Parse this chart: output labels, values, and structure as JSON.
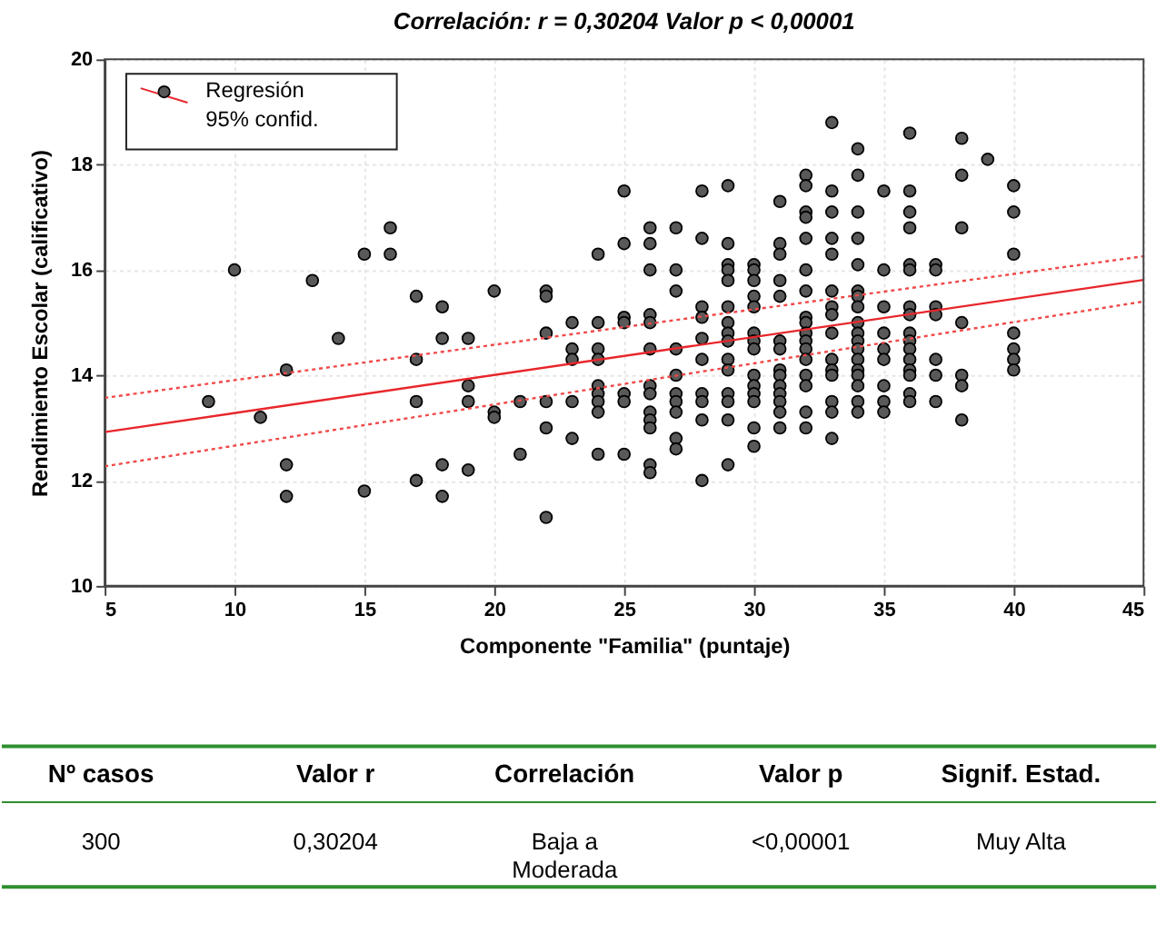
{
  "chart_data": {
    "type": "scatter",
    "title": "Correlación: r = 0,30204   Valor p < 0,00001",
    "xlabel": "Componente \"Familia\" (puntaje)",
    "ylabel": "Rendimiento Escolar (calificativo)",
    "xlim": [
      5,
      45
    ],
    "xticks": [
      5,
      10,
      15,
      20,
      25,
      30,
      35,
      40,
      45
    ],
    "ylim": [
      10,
      20
    ],
    "yticks": [
      10,
      12,
      14,
      16,
      18,
      20
    ],
    "grid": true,
    "legend": "top left",
    "series": [
      {
        "type": "scatter",
        "marker": "circle",
        "color": "#595959",
        "x": [
          9,
          10,
          11,
          12,
          12,
          12,
          13,
          14,
          15,
          15,
          16,
          16,
          17,
          17,
          17,
          17,
          18,
          18,
          18,
          18,
          19,
          19,
          19,
          19,
          20,
          20,
          20,
          21,
          21,
          22,
          22,
          22,
          22,
          22,
          22,
          23,
          23,
          23,
          23,
          23,
          24,
          24,
          24,
          24,
          24,
          24,
          24,
          24,
          24,
          25,
          25,
          25,
          25,
          25,
          25,
          25,
          26,
          26,
          26,
          26,
          26,
          26,
          26,
          26,
          26,
          26,
          26,
          26,
          26,
          27,
          27,
          27,
          27,
          27,
          27,
          27,
          27,
          27,
          27,
          28,
          28,
          28,
          28,
          28,
          28,
          28,
          28,
          28,
          28,
          29,
          29,
          29,
          29,
          29,
          29,
          29,
          29,
          29,
          29,
          29,
          29,
          29,
          29,
          29,
          30,
          30,
          30,
          30,
          30,
          30,
          30,
          30,
          30,
          30,
          30,
          30,
          30,
          30,
          31,
          31,
          31,
          31,
          31,
          31,
          31,
          31,
          31,
          31,
          31,
          31,
          31,
          31,
          32,
          32,
          32,
          32,
          32,
          32,
          32,
          32,
          32,
          32,
          32,
          32,
          32,
          32,
          32,
          32,
          32,
          33,
          33,
          33,
          33,
          33,
          33,
          33,
          33,
          33,
          33,
          33,
          33,
          33,
          33,
          33,
          34,
          34,
          34,
          34,
          34,
          34,
          34,
          34,
          34,
          34,
          34,
          34,
          34,
          34,
          34,
          34,
          34,
          34,
          35,
          35,
          35,
          35,
          35,
          35,
          35,
          35,
          35,
          36,
          36,
          36,
          36,
          36,
          36,
          36,
          36,
          36,
          36,
          36,
          36,
          36,
          36,
          36,
          36,
          37,
          37,
          37,
          37,
          37,
          37,
          37,
          38,
          38,
          38,
          38,
          38,
          38,
          38,
          39,
          40,
          40,
          40,
          40,
          40,
          40,
          40
        ],
        "values": [
          13.5,
          16.0,
          13.2,
          14.1,
          12.3,
          11.7,
          15.8,
          14.7,
          16.3,
          11.8,
          16.8,
          16.3,
          15.5,
          14.3,
          13.5,
          12.0,
          15.3,
          14.7,
          12.3,
          11.7,
          14.7,
          13.8,
          13.5,
          12.2,
          15.6,
          13.3,
          13.2,
          13.5,
          12.5,
          15.6,
          15.5,
          14.8,
          13.5,
          13.0,
          11.3,
          15.0,
          14.5,
          14.3,
          13.5,
          12.8,
          16.3,
          15.0,
          14.5,
          14.3,
          13.8,
          13.65,
          13.5,
          13.3,
          12.5,
          17.5,
          16.5,
          15.1,
          15.0,
          13.65,
          13.5,
          12.5,
          16.8,
          16.5,
          16.0,
          15.15,
          15.0,
          14.5,
          13.8,
          13.65,
          13.3,
          13.15,
          13.0,
          12.3,
          12.15,
          16.8,
          16.0,
          15.6,
          14.5,
          14.0,
          13.65,
          13.5,
          13.3,
          12.8,
          12.6,
          17.5,
          16.6,
          15.3,
          15.1,
          14.7,
          14.3,
          13.65,
          13.5,
          13.15,
          12.0,
          17.6,
          16.5,
          16.1,
          16.0,
          15.8,
          15.3,
          15.0,
          14.8,
          14.65,
          14.3,
          14.1,
          13.65,
          13.5,
          13.15,
          12.3,
          16.1,
          16.0,
          15.8,
          15.5,
          15.3,
          14.8,
          14.65,
          14.5,
          14.0,
          13.8,
          13.65,
          13.5,
          13.0,
          12.65,
          17.3,
          16.5,
          16.3,
          15.8,
          15.5,
          14.65,
          14.5,
          14.1,
          14.0,
          13.8,
          13.65,
          13.5,
          13.3,
          13.0,
          17.8,
          17.6,
          17.1,
          17.0,
          16.6,
          16.0,
          15.6,
          15.1,
          15.0,
          14.8,
          14.65,
          14.5,
          14.3,
          14.0,
          13.8,
          13.3,
          13.0,
          18.8,
          17.5,
          17.1,
          16.6,
          16.3,
          15.6,
          15.3,
          15.15,
          14.8,
          14.3,
          14.1,
          14.0,
          13.5,
          13.3,
          12.8,
          18.3,
          17.8,
          17.1,
          16.6,
          16.1,
          15.6,
          15.5,
          15.3,
          15.0,
          14.8,
          14.65,
          14.5,
          14.3,
          14.1,
          14.0,
          13.8,
          13.5,
          13.3,
          17.5,
          16.0,
          15.3,
          14.8,
          14.5,
          14.3,
          13.8,
          13.5,
          13.3,
          18.6,
          17.5,
          17.1,
          16.8,
          16.1,
          16.0,
          15.3,
          15.15,
          14.8,
          14.65,
          14.5,
          14.3,
          14.1,
          14.0,
          13.65,
          13.5,
          16.1,
          16.0,
          15.3,
          15.15,
          14.3,
          14.0,
          13.5,
          18.5,
          17.8,
          16.8,
          15.0,
          14.0,
          13.8,
          13.15,
          18.1,
          17.6,
          17.1,
          16.3,
          14.8,
          14.5,
          14.3,
          14.1
        ]
      },
      {
        "type": "line",
        "name": "Regresión\n95% confid.",
        "marker": "none",
        "color": "#e8262b",
        "line_style": "solid",
        "x": [
          5,
          45
        ],
        "values": [
          12.92,
          15.81
        ]
      },
      {
        "type": "line",
        "marker": "none",
        "color": "#f04848",
        "line_style": "dotted",
        "x": [
          5,
          45
        ],
        "values": [
          13.57,
          16.26
        ]
      },
      {
        "type": "line",
        "marker": "none",
        "color": "#f04848",
        "line_style": "dotted",
        "x": [
          5,
          45
        ],
        "values": [
          12.27,
          15.4
        ]
      }
    ],
    "annotations": [
      "Nº casos",
      "Valor r",
      "Correlación",
      "Valor p",
      "Signif. Estad.",
      "300",
      "0,30204",
      "Baja a\nModerada",
      "<0,00001",
      "Muy  Alta"
    ]
  }
}
